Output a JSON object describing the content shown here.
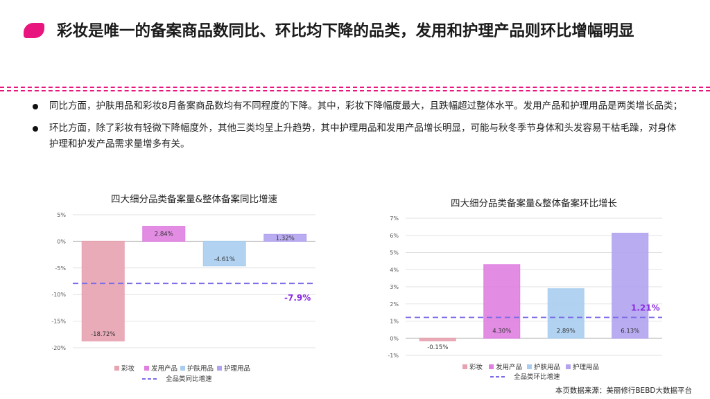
{
  "slide": {
    "title": "彩妆是唯一的备案商品数同比、环比均下降的品类，发用和护理产品则环比增幅明显",
    "bullets": [
      "同比方面，护肤用品和彩妆8月备案商品数均有不同程度的下降。其中，彩妆下降幅度最大，且跌幅超过整体水平。发用产品和护理用品是两类增长品类；",
      "环比方面，除了彩妆有轻微下降幅度外，其他三类均呈上升趋势，其中护理用品和发用产品增长明显，可能与秋冬季节身体和头发容易干枯毛躁，对身体护理和护发产品需求量增多有关。"
    ],
    "source": "本页数据来源：美丽修行BEBD大数据平台",
    "colors": {
      "accent": "#e8157e"
    }
  },
  "chart_data": [
    {
      "type": "bar",
      "title": "四大细分品类备案量&整体备案同比增速",
      "categories": [
        "彩妆",
        "发用产品",
        "护肤用品",
        "护理用品"
      ],
      "values": [
        -18.72,
        2.84,
        -4.61,
        1.32
      ],
      "value_labels": [
        "-18.72%",
        "2.84%",
        "-4.61%",
        "1.32%"
      ],
      "colors": [
        "#e8a2b0",
        "#df7fe0",
        "#a9cdef",
        "#b3a3ef"
      ],
      "reference_line": {
        "name": "全品类同比增速",
        "value": -7.9,
        "label": "-7.9%",
        "color": "#7b6ce6"
      },
      "ylim": [
        -20,
        5
      ],
      "yticks": [
        5,
        0,
        -5,
        -10,
        -15,
        -20
      ],
      "ytick_labels": [
        "5%",
        "0%",
        "-5%",
        "-10%",
        "-15%",
        "-20%"
      ],
      "grid": true,
      "legend_position": "bottom"
    },
    {
      "type": "bar",
      "title": "四大细分品类备案量&整体备案环比增长",
      "categories": [
        "彩妆",
        "发用产品",
        "护肤用品",
        "护理用品"
      ],
      "values": [
        -0.15,
        4.3,
        2.89,
        6.13
      ],
      "value_labels": [
        "-0.15%",
        "4.30%",
        "2.89%",
        "6.13%"
      ],
      "colors": [
        "#e8a2b0",
        "#df7fe0",
        "#a9cdef",
        "#b3a3ef"
      ],
      "reference_line": {
        "name": "全品类环比增速",
        "value": 1.21,
        "label": "1.21%",
        "color": "#7b6ce6"
      },
      "ylim": [
        -1,
        7
      ],
      "yticks": [
        7,
        6,
        5,
        4,
        3,
        2,
        1,
        0,
        -1
      ],
      "ytick_labels": [
        "7%",
        "6%",
        "5%",
        "4%",
        "3%",
        "2%",
        "1%",
        "0%",
        "-1%"
      ],
      "grid": true,
      "legend_position": "bottom"
    }
  ]
}
